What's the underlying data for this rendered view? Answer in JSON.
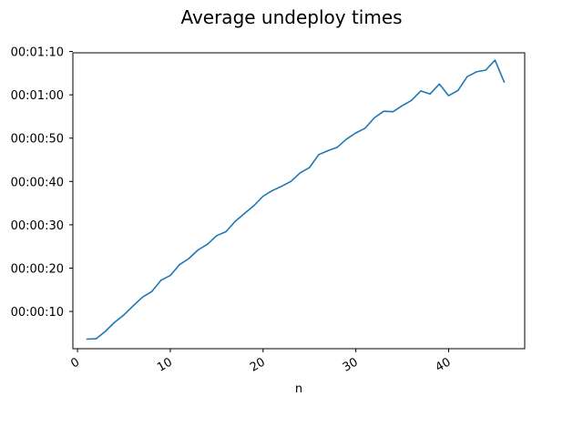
{
  "chart_data": {
    "type": "line",
    "title": "Average undeploy times",
    "xlabel": "n",
    "ylabel": "",
    "xlim": [
      -0.5,
      48.2
    ],
    "ylim": [
      1.4,
      69.7
    ],
    "x_ticks": [
      0,
      10,
      20,
      30,
      40
    ],
    "x_tick_labels": [
      "0",
      "10",
      "20",
      "30",
      "40"
    ],
    "y_ticks": [
      10,
      20,
      30,
      40,
      50,
      60,
      70
    ],
    "y_tick_labels": [
      "00:00:10",
      "00:00:20",
      "00:00:30",
      "00:00:40",
      "00:00:50",
      "00:01:00",
      "00:01:10"
    ],
    "y_unit": "seconds",
    "grid": false,
    "series": [
      {
        "color": "#1f77b4",
        "x": [
          1,
          2,
          3,
          4,
          5,
          6,
          7,
          8,
          9,
          10,
          11,
          12,
          13,
          14,
          15,
          16,
          17,
          18,
          19,
          20,
          21,
          22,
          23,
          24,
          25,
          26,
          27,
          28,
          29,
          30,
          31,
          32,
          33,
          34,
          35,
          36,
          37,
          38,
          39,
          40,
          41,
          42,
          43,
          44,
          45,
          46
        ],
        "values": [
          3.6,
          3.7,
          5.4,
          7.5,
          9.2,
          11.3,
          13.3,
          14.6,
          17.2,
          18.3,
          20.8,
          22.2,
          24.2,
          25.5,
          27.5,
          28.4,
          30.8,
          32.6,
          34.4,
          36.6,
          37.9,
          38.9,
          40.0,
          42.0,
          43.2,
          46.2,
          47.1,
          47.9,
          49.8,
          51.2,
          52.3,
          54.7,
          56.2,
          56.1,
          57.5,
          58.7,
          60.9,
          60.2,
          62.5,
          59.8,
          61.0,
          64.2,
          65.3,
          65.7,
          68.0,
          62.9
        ]
      }
    ]
  }
}
